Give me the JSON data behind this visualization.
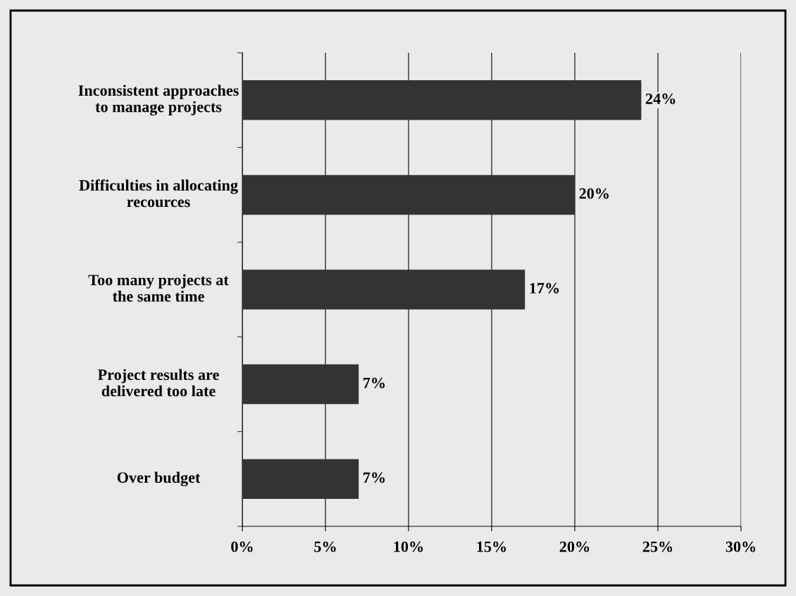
{
  "chart_data": {
    "type": "bar",
    "orientation": "horizontal",
    "categories": [
      "Inconsistent approaches to manage projects",
      "Difficulties in allocating recources",
      "Too many projects at the same time",
      "Project results are delivered too late",
      "Over budget"
    ],
    "values": [
      24,
      20,
      17,
      7,
      7
    ],
    "value_labels": [
      "24%",
      "20%",
      "17%",
      "7%",
      "7%"
    ],
    "color": "#333333",
    "xlim": [
      0,
      30
    ],
    "xticks": [
      {
        "value": 0,
        "label": "0%"
      },
      {
        "value": 5,
        "label": "5%"
      },
      {
        "value": 10,
        "label": "10%"
      },
      {
        "value": 15,
        "label": "15%"
      },
      {
        "value": 20,
        "label": "20%"
      },
      {
        "value": 25,
        "label": "25%"
      },
      {
        "value": 30,
        "label": "30%"
      }
    ],
    "grid": "x"
  }
}
